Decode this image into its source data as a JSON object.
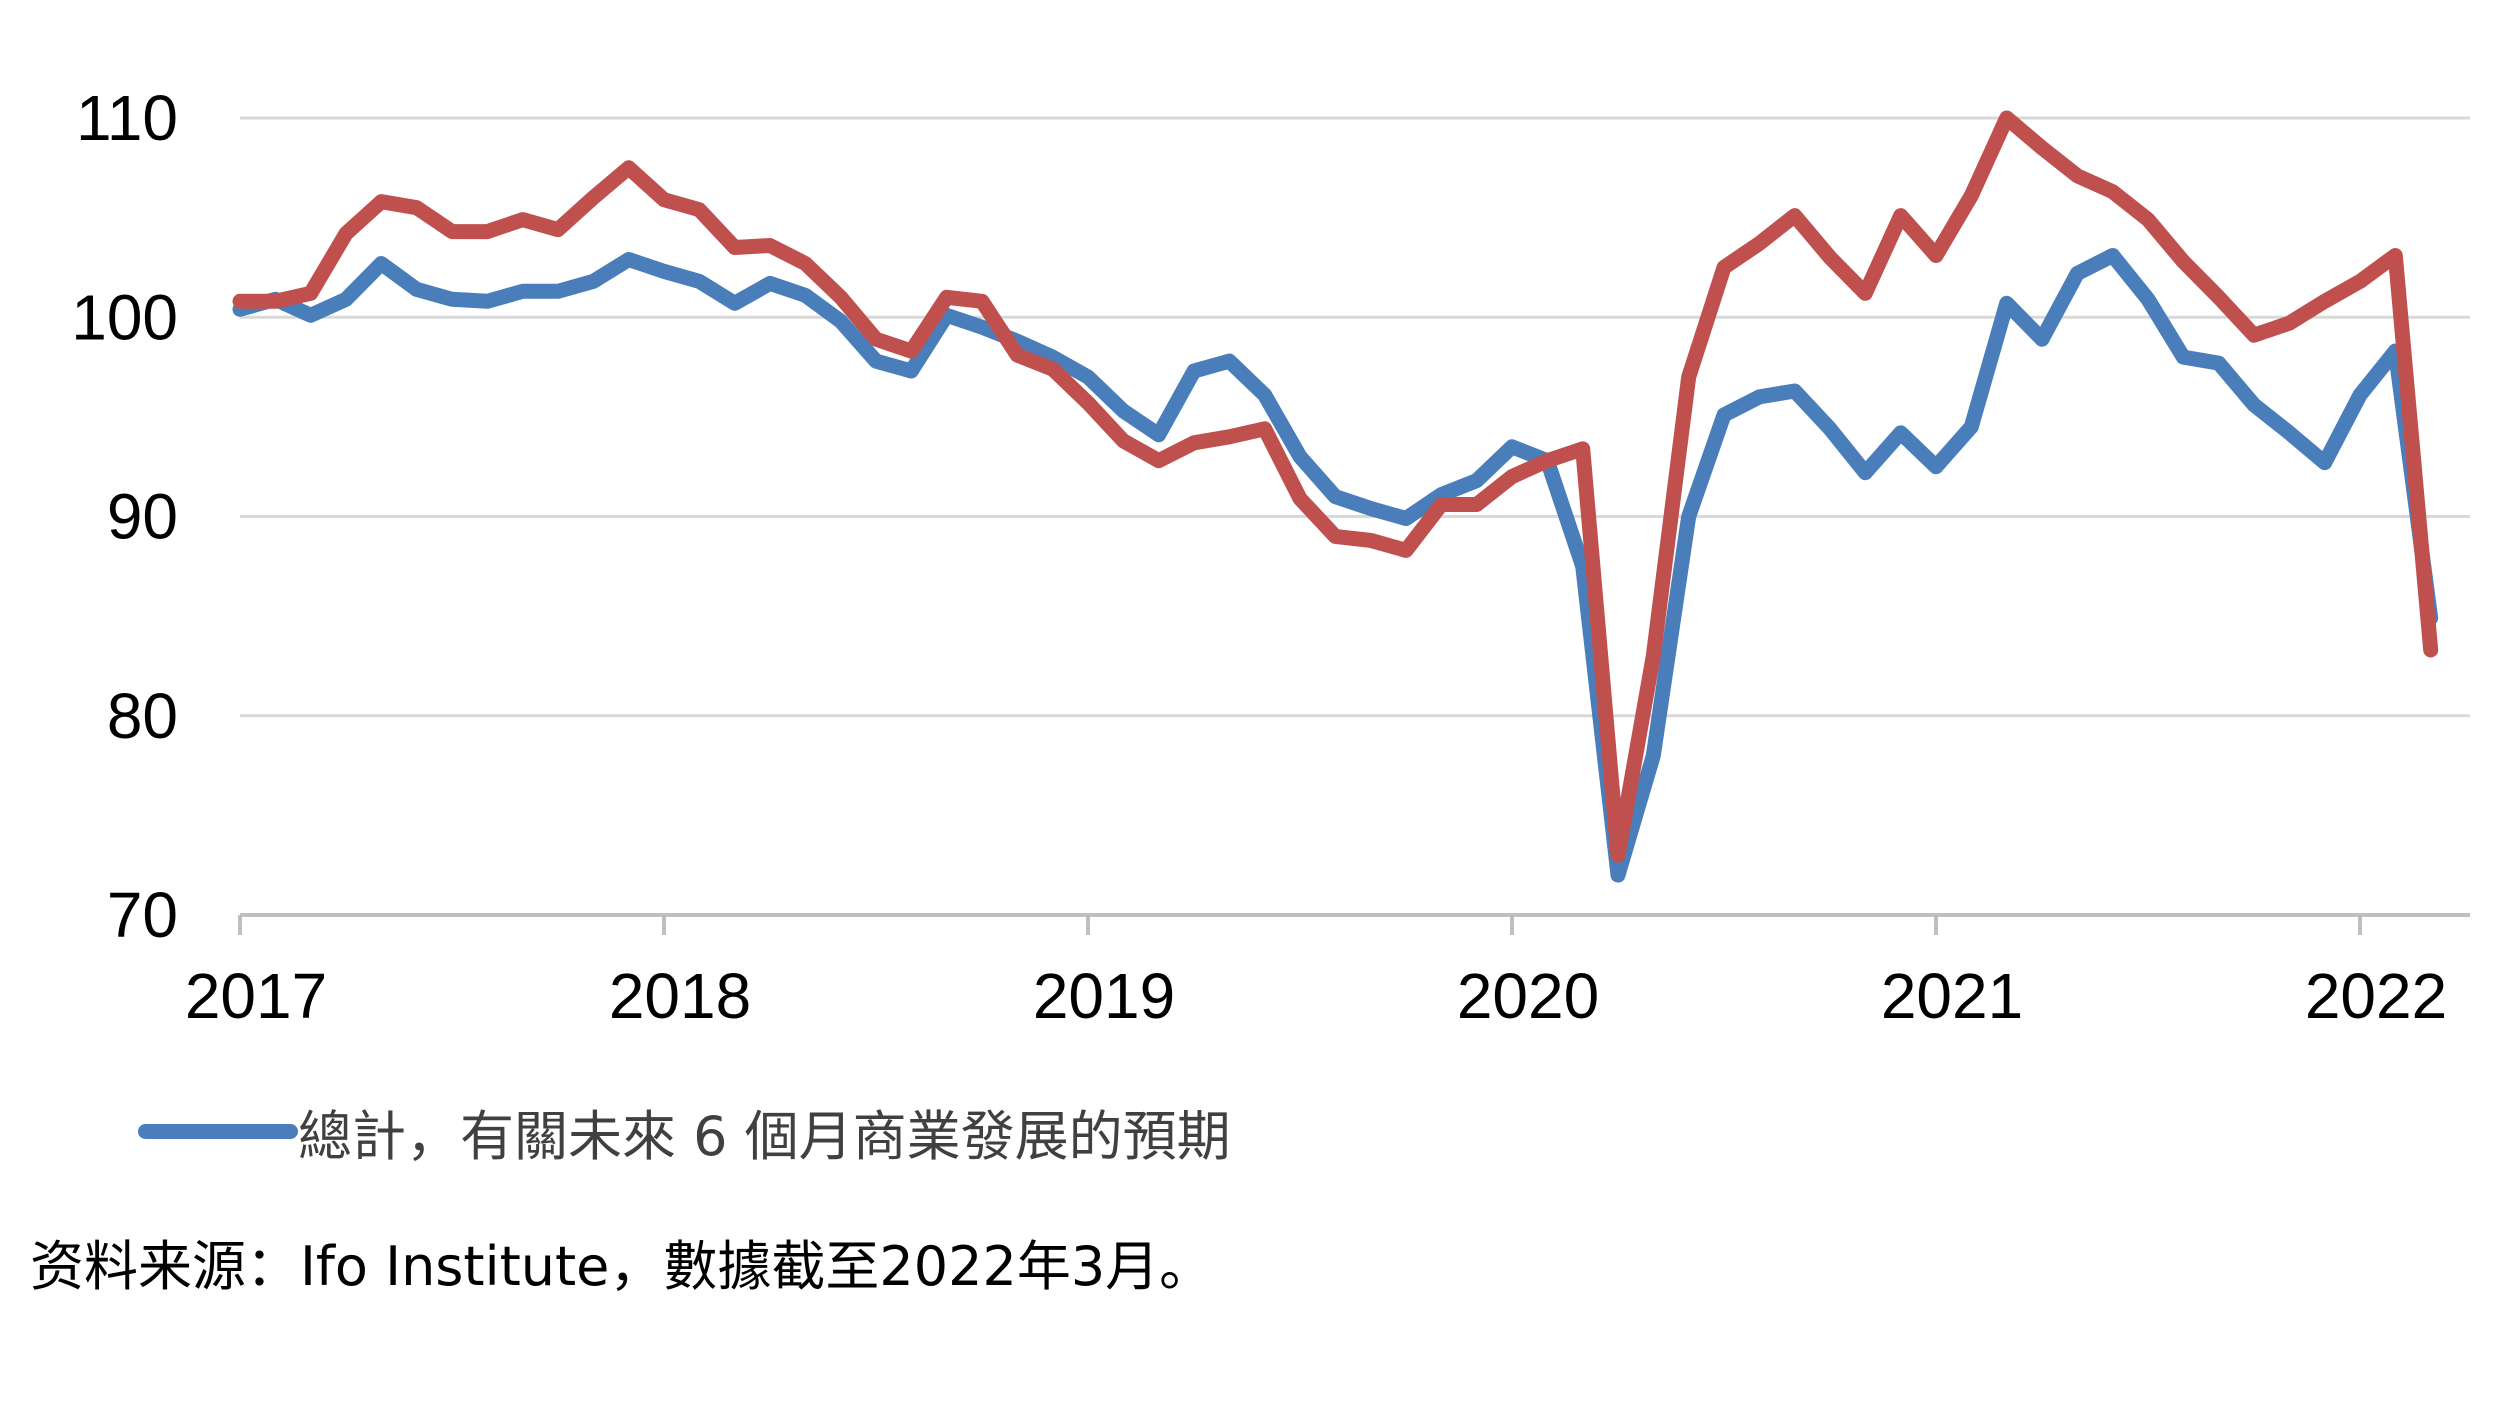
{
  "chart_data": {
    "type": "line",
    "ylim": [
      70,
      110
    ],
    "y_ticks": [
      "110",
      "100",
      "90",
      "80",
      "70"
    ],
    "x_ticks": [
      "2017",
      "2018",
      "2019",
      "2020",
      "2021",
      "2022"
    ],
    "x_start": "2017-01",
    "grid": true,
    "legend_position": "bottom-left",
    "series": [
      {
        "name": "總計，有關未來 6 個月商業發展的預期",
        "color": "#4a7ebb",
        "values": [
          100.4,
          100.9,
          100.1,
          100.9,
          102.7,
          101.4,
          100.9,
          100.8,
          101.3,
          101.3,
          101.8,
          102.9,
          102.3,
          101.8,
          100.7,
          101.7,
          101.1,
          99.8,
          97.8,
          97.3,
          100.1,
          99.5,
          98.8,
          98.0,
          97.0,
          95.3,
          94.1,
          97.3,
          97.8,
          96.1,
          93.0,
          91.0,
          90.4,
          89.9,
          91.1,
          91.8,
          93.5,
          92.8,
          87.5,
          72.0,
          78.0,
          90.0,
          95.1,
          96.0,
          96.3,
          94.4,
          92.2,
          94.2,
          92.5,
          94.5,
          100.7,
          98.9,
          102.2,
          103.1,
          100.9,
          98.0,
          97.7,
          95.6,
          94.2,
          92.7,
          96.1,
          98.3,
          84.9
        ]
      },
      {
        "name": "",
        "color": "#c0504d",
        "values": [
          100.8,
          100.8,
          101.2,
          104.2,
          105.8,
          105.5,
          104.3,
          104.3,
          104.9,
          104.4,
          106.0,
          107.5,
          105.9,
          105.4,
          103.5,
          103.6,
          102.7,
          101.0,
          98.9,
          98.3,
          101.0,
          100.8,
          98.1,
          97.4,
          95.7,
          93.8,
          92.8,
          93.7,
          94.0,
          94.4,
          90.9,
          89.0,
          88.8,
          88.3,
          90.6,
          90.6,
          92.0,
          92.8,
          93.4,
          73.0,
          83.0,
          97.0,
          102.5,
          103.7,
          105.1,
          103.0,
          101.2,
          105.1,
          103.1,
          106.1,
          110.0,
          108.5,
          107.1,
          106.3,
          104.9,
          102.8,
          101.0,
          99.1,
          99.7,
          100.8,
          101.8,
          103.1,
          83.3
        ]
      }
    ]
  },
  "source_note": "资料来源：Ifo Institute，數據截至2022年3月。"
}
